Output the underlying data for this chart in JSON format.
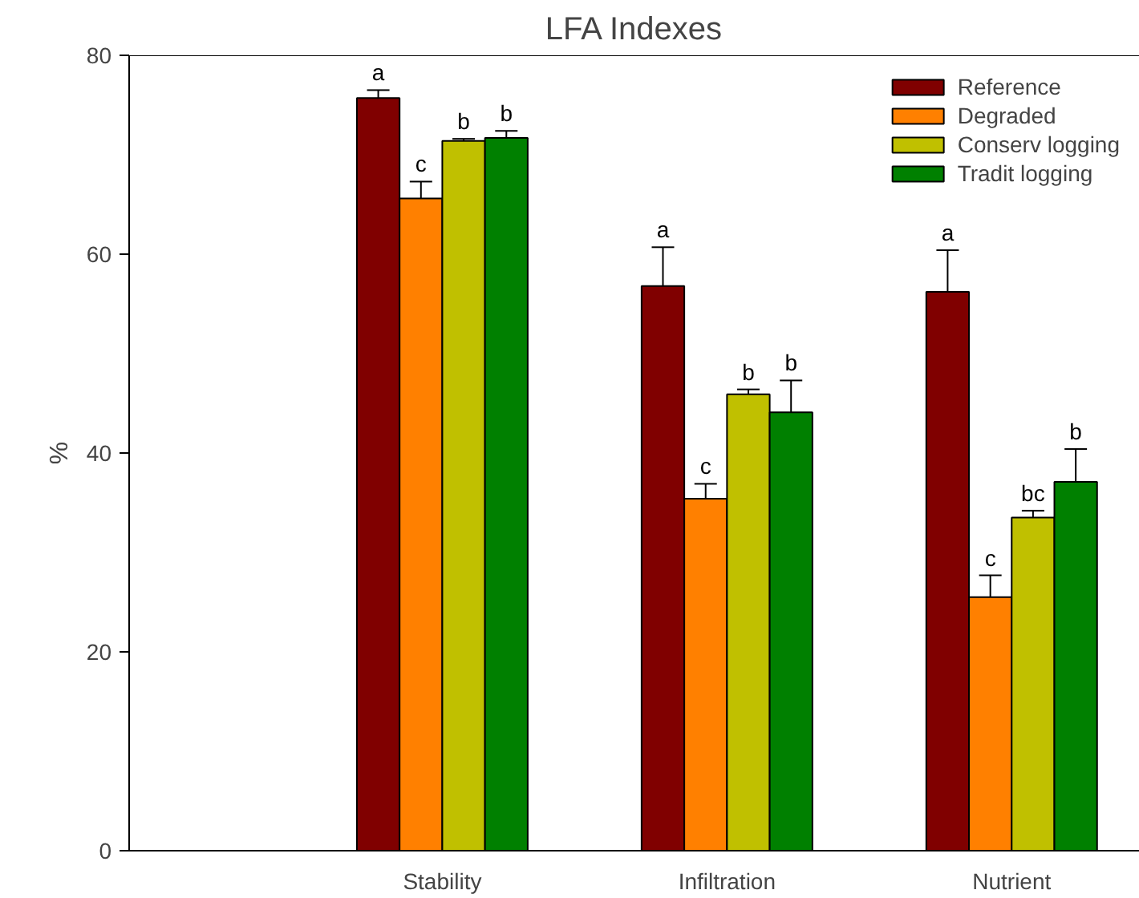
{
  "chart_data": {
    "type": "bar",
    "title": "LFA Indexes",
    "ylabel": "%",
    "categories": [
      "Stability",
      "Infiltration",
      "Nutrient"
    ],
    "ylim": [
      0,
      80
    ],
    "yticks": [
      0,
      20,
      40,
      60,
      80
    ],
    "grid": false,
    "legend": "top right",
    "series": [
      {
        "name": "Reference",
        "color": "#800000",
        "values": [
          75.7,
          56.8,
          56.2
        ],
        "errors": [
          0.8,
          3.9,
          4.2
        ],
        "value_labels": [
          "a",
          "a",
          "a"
        ]
      },
      {
        "name": "Degraded",
        "color": "#ff8000",
        "values": [
          65.6,
          35.4,
          25.5
        ],
        "errors": [
          1.7,
          1.5,
          2.2
        ],
        "value_labels": [
          "c",
          "c",
          "c"
        ]
      },
      {
        "name": "Conserv logging",
        "color": "#c0c000",
        "values": [
          71.4,
          45.9,
          33.5
        ],
        "errors": [
          0.2,
          0.5,
          0.7
        ],
        "value_labels": [
          "b",
          "b",
          "bc"
        ]
      },
      {
        "name": "Tradit logging",
        "color": "#008000",
        "values": [
          71.7,
          44.1,
          37.1
        ],
        "errors": [
          0.7,
          3.2,
          3.3
        ],
        "value_labels": [
          "b",
          "b",
          "b"
        ]
      }
    ]
  }
}
